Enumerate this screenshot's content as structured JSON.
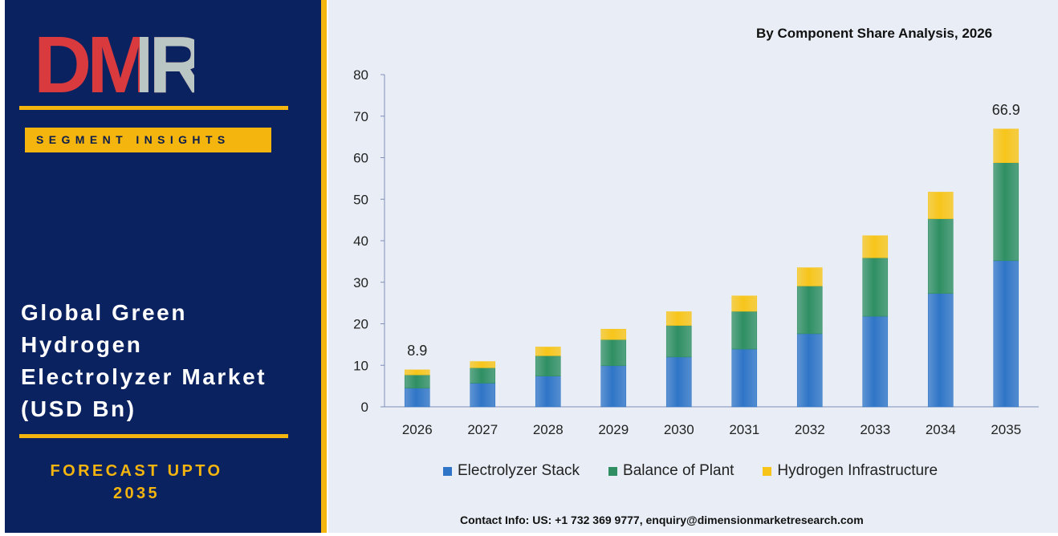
{
  "brand": {
    "logo_text": "DMR",
    "segment_label": "SEGMENT INSIGHTS"
  },
  "report": {
    "title_lines": [
      "Global Green",
      "Hydrogen",
      "Electrolyzer Market",
      "(USD Bn)"
    ],
    "forecast_lines": [
      "FORECAST UPTO",
      "2035"
    ]
  },
  "contact": "Contact Info: US: +1 732 369 9777, enquiry@dimensionmarketresearch.com",
  "colors": {
    "navy": "#0b2260",
    "gold": "#f5b50f",
    "background": "#e9eef6",
    "logo_red": "#d93a3e",
    "logo_grey": "#b9c6c4"
  },
  "chart_data": {
    "type": "bar",
    "stacked": true,
    "title": "By Component Share Analysis, 2026",
    "categories": [
      "2026",
      "2027",
      "2028",
      "2029",
      "2030",
      "2031",
      "2032",
      "2033",
      "2034",
      "2035"
    ],
    "series": [
      {
        "name": "Electrolyzer Stack",
        "color": "#2f75c7",
        "values": [
          4.5,
          5.7,
          7.4,
          9.9,
          12.0,
          13.9,
          17.6,
          21.8,
          27.3,
          35.2
        ]
      },
      {
        "name": "Balance of Plant",
        "color": "#2f8f63",
        "values": [
          3.2,
          3.7,
          4.9,
          6.3,
          7.6,
          9.1,
          11.5,
          14.1,
          18.0,
          23.6
        ]
      },
      {
        "name": "Hydrogen Infrastructure",
        "color": "#f7c51a",
        "values": [
          1.2,
          1.5,
          2.1,
          2.5,
          3.3,
          3.7,
          4.4,
          5.3,
          6.4,
          8.1
        ]
      }
    ],
    "totals": [
      "8.9",
      "",
      "",
      "",
      "",
      "",
      "",
      "",
      "",
      "66.9"
    ],
    "ylim": [
      0,
      80
    ],
    "yticks": [
      0,
      10,
      20,
      30,
      40,
      50,
      60,
      70,
      80
    ],
    "grid": false,
    "legend_position": "bottom"
  }
}
